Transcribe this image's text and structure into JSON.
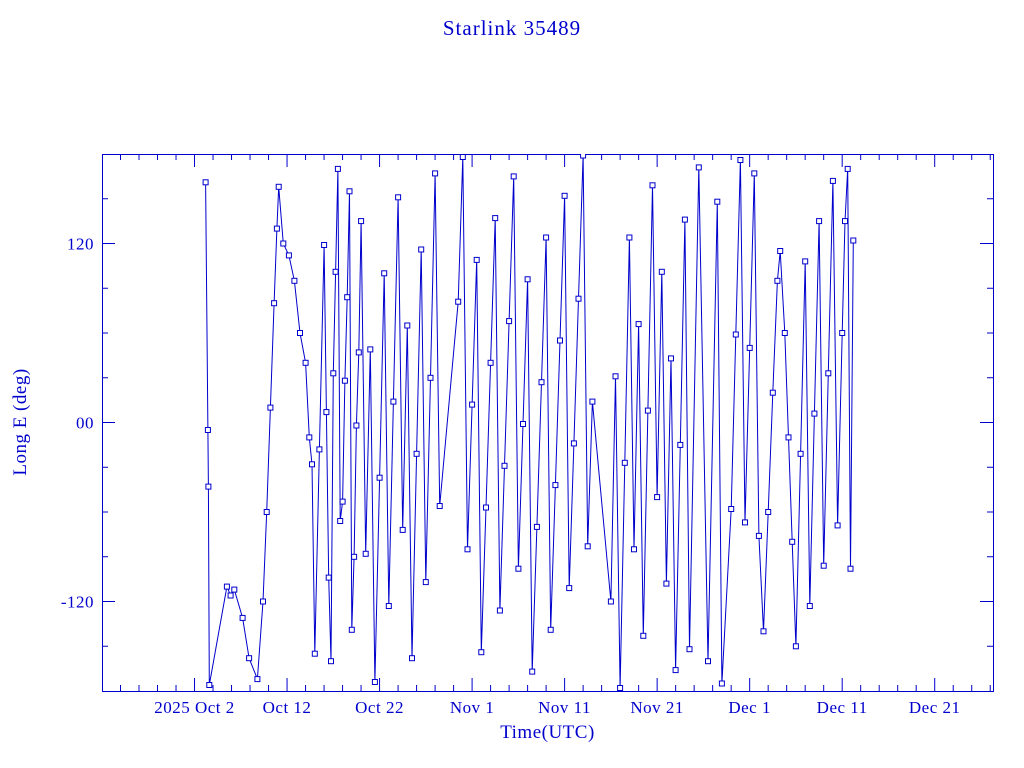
{
  "chart_data": {
    "type": "scatter",
    "title": "Starlink 35489",
    "xlabel": "Time(UTC)",
    "ylabel": "Long E (deg)",
    "accent_color": "#0000cd",
    "grid": false,
    "legend": "none",
    "marker": "open-square",
    "line": "solid",
    "x_unit": "days since 2025 Oct 2 (UTC)",
    "xlim": [
      -10,
      86.3
    ],
    "ylim": [
      -180,
      180
    ],
    "x_major_ticks": [
      {
        "value": 0,
        "label": "2025 Oct 2"
      },
      {
        "value": 10,
        "label": "Oct 12"
      },
      {
        "value": 20,
        "label": "Oct 22"
      },
      {
        "value": 30,
        "label": "Nov 1"
      },
      {
        "value": 40,
        "label": "Nov 11"
      },
      {
        "value": 50,
        "label": "Nov 21"
      },
      {
        "value": 60,
        "label": "Dec 1"
      },
      {
        "value": 70,
        "label": "Dec 11"
      },
      {
        "value": 80,
        "label": "Dec 21"
      }
    ],
    "x_minor_step": 2,
    "y_major_ticks": [
      {
        "value": 120,
        "label": "120"
      },
      {
        "value": 0,
        "label": "00"
      },
      {
        "value": -120,
        "label": "-120"
      }
    ],
    "y_minor_step": 30,
    "points": [
      [
        1.2,
        161
      ],
      [
        1.45,
        -5
      ],
      [
        1.5,
        -43
      ],
      [
        1.6,
        -176
      ],
      [
        3.5,
        -110
      ],
      [
        3.9,
        -116
      ],
      [
        4.3,
        -112
      ],
      [
        5.2,
        -131
      ],
      [
        5.9,
        -158
      ],
      [
        6.8,
        -172
      ],
      [
        7.4,
        -120
      ],
      [
        7.8,
        -60
      ],
      [
        8.2,
        10
      ],
      [
        8.6,
        80
      ],
      [
        8.9,
        130
      ],
      [
        9.1,
        158
      ],
      [
        9.6,
        120
      ],
      [
        10.2,
        112
      ],
      [
        10.8,
        95
      ],
      [
        11.4,
        60
      ],
      [
        12.0,
        40
      ],
      [
        12.4,
        -10
      ],
      [
        12.7,
        -28
      ],
      [
        13.0,
        -155
      ],
      [
        13.5,
        -18
      ],
      [
        14.0,
        119
      ],
      [
        14.25,
        7
      ],
      [
        14.5,
        -104
      ],
      [
        14.75,
        -160
      ],
      [
        15.0,
        33
      ],
      [
        15.25,
        101
      ],
      [
        15.5,
        170
      ],
      [
        15.75,
        -66
      ],
      [
        16.0,
        -53
      ],
      [
        16.25,
        28
      ],
      [
        16.5,
        84
      ],
      [
        16.75,
        155
      ],
      [
        17.0,
        -139
      ],
      [
        17.25,
        -90
      ],
      [
        17.5,
        -2
      ],
      [
        17.75,
        47
      ],
      [
        18.0,
        135
      ],
      [
        18.5,
        -88
      ],
      [
        19.0,
        49
      ],
      [
        19.5,
        -174
      ],
      [
        20.0,
        -37
      ],
      [
        20.5,
        100
      ],
      [
        21.0,
        -123
      ],
      [
        21.5,
        14
      ],
      [
        22.0,
        151
      ],
      [
        22.5,
        -72
      ],
      [
        23.0,
        65
      ],
      [
        23.5,
        -158
      ],
      [
        24.0,
        -21
      ],
      [
        24.5,
        116
      ],
      [
        25.0,
        -107
      ],
      [
        25.5,
        30
      ],
      [
        26.0,
        167
      ],
      [
        26.5,
        -56
      ],
      [
        28.5,
        81
      ],
      [
        29.0,
        178
      ],
      [
        29.5,
        -85
      ],
      [
        30.0,
        12
      ],
      [
        30.5,
        109
      ],
      [
        31.0,
        -154
      ],
      [
        31.5,
        -57
      ],
      [
        32.0,
        40
      ],
      [
        32.5,
        137
      ],
      [
        33.0,
        -126
      ],
      [
        33.5,
        -29
      ],
      [
        34.0,
        68
      ],
      [
        34.5,
        165
      ],
      [
        35.0,
        -98
      ],
      [
        35.5,
        -1
      ],
      [
        36.0,
        96
      ],
      [
        36.5,
        -167
      ],
      [
        37.0,
        -70
      ],
      [
        37.5,
        27
      ],
      [
        38.0,
        124
      ],
      [
        38.5,
        -139
      ],
      [
        39.0,
        -42
      ],
      [
        39.5,
        55
      ],
      [
        40.0,
        152
      ],
      [
        40.5,
        -111
      ],
      [
        41.0,
        -14
      ],
      [
        41.5,
        83
      ],
      [
        42.0,
        179
      ],
      [
        42.5,
        -83
      ],
      [
        43.0,
        14
      ],
      [
        45.0,
        -120
      ],
      [
        45.5,
        31
      ],
      [
        46.0,
        -178
      ],
      [
        46.5,
        -27
      ],
      [
        47.0,
        124
      ],
      [
        47.5,
        -85
      ],
      [
        48.0,
        66
      ],
      [
        48.5,
        -143
      ],
      [
        49.0,
        8
      ],
      [
        49.5,
        159
      ],
      [
        50.0,
        -50
      ],
      [
        50.5,
        101
      ],
      [
        51.0,
        -108
      ],
      [
        51.5,
        43
      ],
      [
        52.0,
        -166
      ],
      [
        52.5,
        -15
      ],
      [
        53.0,
        136
      ],
      [
        53.5,
        -152
      ],
      [
        54.5,
        171
      ],
      [
        55.5,
        -160
      ],
      [
        56.5,
        148
      ],
      [
        57.0,
        -175
      ],
      [
        58.0,
        -58
      ],
      [
        58.5,
        59
      ],
      [
        59.0,
        176
      ],
      [
        59.5,
        -67
      ],
      [
        60.0,
        50
      ],
      [
        60.5,
        167
      ],
      [
        61.0,
        -76
      ],
      [
        61.5,
        -140
      ],
      [
        62.0,
        -60
      ],
      [
        62.5,
        20
      ],
      [
        63.0,
        95
      ],
      [
        63.3,
        115
      ],
      [
        63.8,
        60
      ],
      [
        64.2,
        -10
      ],
      [
        64.6,
        -80
      ],
      [
        65.0,
        -150
      ],
      [
        65.5,
        -21
      ],
      [
        66.0,
        108
      ],
      [
        66.5,
        -123
      ],
      [
        67.0,
        6
      ],
      [
        67.5,
        135
      ],
      [
        68.0,
        -96
      ],
      [
        68.5,
        33
      ],
      [
        69.0,
        162
      ],
      [
        69.5,
        -69
      ],
      [
        70.0,
        60
      ],
      [
        70.3,
        135
      ],
      [
        70.6,
        170
      ],
      [
        70.9,
        -98
      ],
      [
        71.2,
        122
      ]
    ]
  }
}
